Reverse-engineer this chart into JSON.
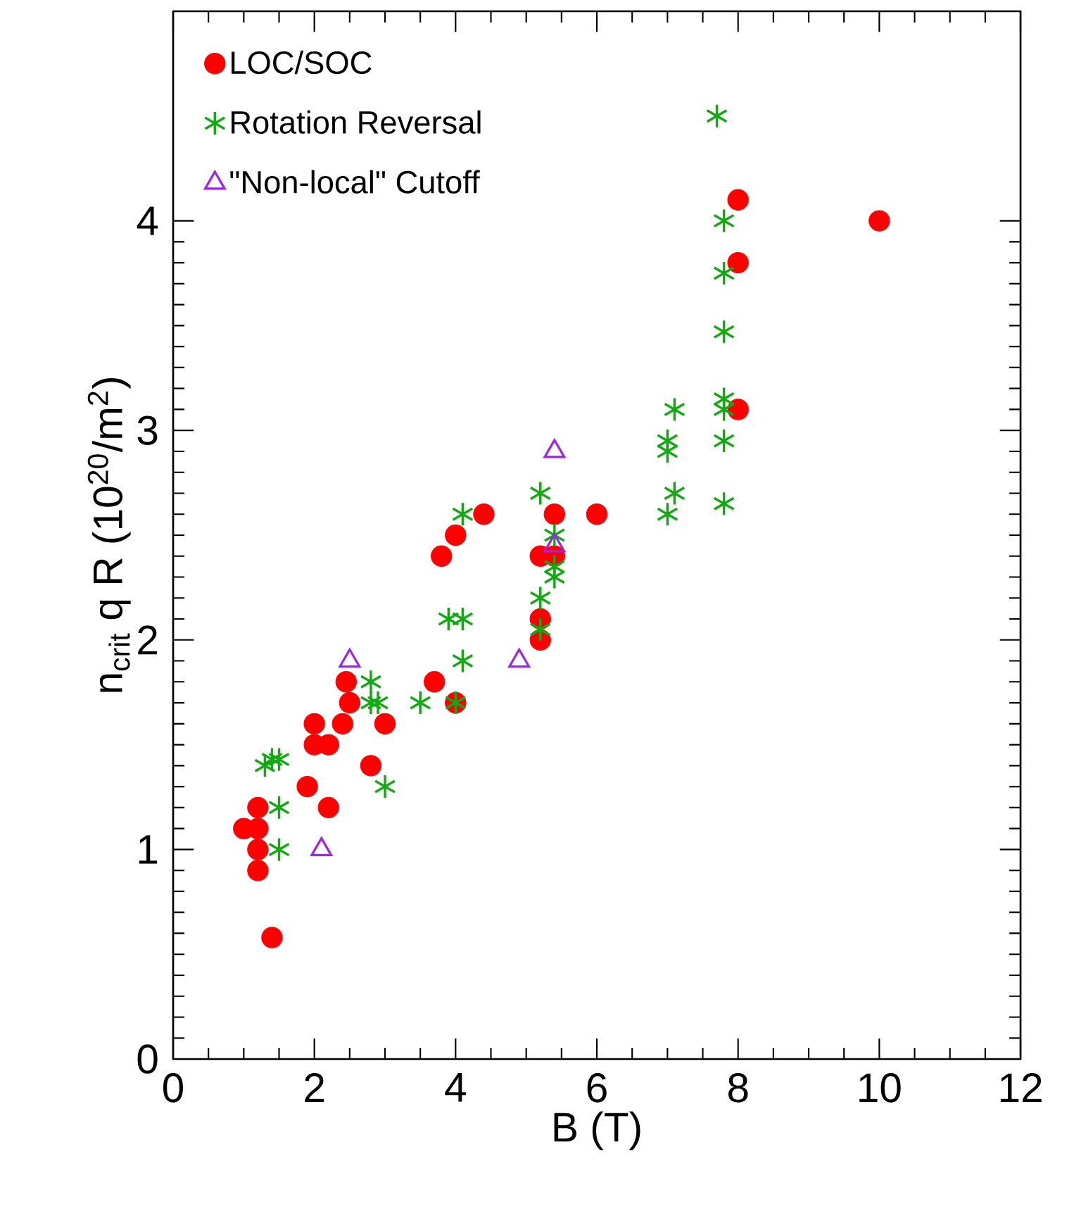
{
  "chart_data": {
    "type": "scatter",
    "xlabel": "B (T)",
    "ylabel": "n$_{crit}$ q R (10$^{20}$/m$^{2}$)",
    "x": [
      1.0,
      1.2,
      1.2,
      1.2,
      1.2,
      1.4,
      1.9,
      2.0,
      2.0,
      2.2,
      2.2,
      2.4,
      2.45,
      2.5,
      2.8,
      3.0,
      3.7,
      3.8,
      4.0,
      4.0,
      4.4,
      5.2,
      5.2,
      5.2,
      5.4,
      5.4,
      6.0,
      8.0,
      8.0,
      8.0,
      10.0
    ],
    "series": [
      {
        "name": "LOC/SOC",
        "color": "#ff0000",
        "marker": "circle",
        "values": [
          1.1,
          1.2,
          1.1,
          1.0,
          0.9,
          0.58,
          1.3,
          1.5,
          1.6,
          1.5,
          1.2,
          1.6,
          1.8,
          1.7,
          1.4,
          1.6,
          1.8,
          2.4,
          2.5,
          1.7,
          2.6,
          2.4,
          2.1,
          2.0,
          2.6,
          2.4,
          2.6,
          4.1,
          3.8,
          3.1,
          4.0
        ]
      },
      {
        "name": "Rotation Reversal",
        "color": "#11aa11",
        "marker": "cross",
        "x": [
          1.3,
          1.4,
          1.5,
          1.5,
          1.5,
          2.8,
          2.8,
          2.9,
          3.0,
          3.5,
          3.9,
          4.1,
          4.0,
          4.1,
          4.1,
          5.2,
          5.2,
          5.2,
          5.4,
          5.4,
          5.4,
          7.0,
          7.0,
          7.0,
          7.1,
          7.1,
          7.7,
          7.8,
          7.8,
          7.8,
          7.8,
          7.8,
          7.8,
          7.8
        ],
        "values": [
          1.4,
          1.43,
          1.43,
          1.2,
          1.0,
          1.7,
          1.8,
          1.7,
          1.3,
          1.7,
          2.1,
          2.1,
          1.7,
          1.9,
          2.6,
          2.7,
          2.2,
          2.05,
          2.5,
          2.3,
          2.35,
          2.95,
          2.9,
          2.6,
          3.1,
          2.7,
          4.5,
          4.0,
          3.75,
          3.47,
          3.15,
          3.1,
          2.95,
          2.65
        ]
      },
      {
        "name": "\"Non-local\" Cutoff",
        "color": "#a020f0",
        "marker": "triangle",
        "x": [
          2.1,
          2.5,
          4.9,
          5.4,
          5.4
        ],
        "values": [
          1.0,
          1.9,
          1.9,
          2.9,
          2.45
        ]
      }
    ],
    "xlim": [
      0,
      12
    ],
    "ylim": [
      0,
      5
    ],
    "xticks": [
      0,
      2,
      4,
      6,
      8,
      10,
      12
    ],
    "yticks": [
      0,
      1,
      2,
      3,
      4
    ],
    "legend": "top left"
  }
}
